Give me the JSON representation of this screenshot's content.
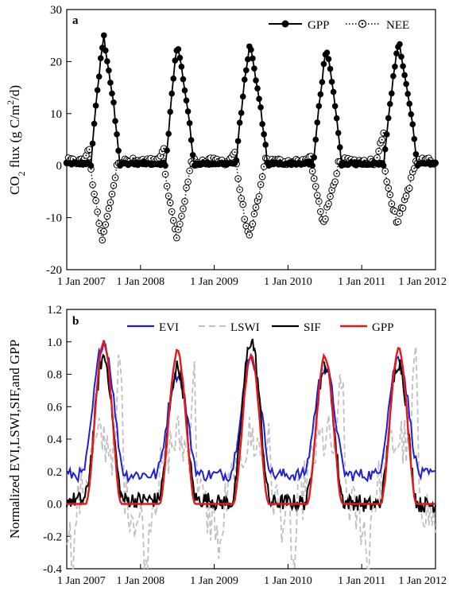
{
  "chart_data": [
    {
      "type": "line",
      "panel_label": "a",
      "title": "",
      "ylabel": "CO2 flux (g C/m2/d)",
      "ylabel_parts": {
        "pre": "CO",
        "sub": "2",
        "mid": " flux (g C/m",
        "sup": "2",
        "post": "/d)"
      },
      "xlabel": "",
      "xlim": [
        2007.0,
        2012.0
      ],
      "ylim": [
        -20,
        30
      ],
      "yticks": [
        -20,
        -10,
        0,
        10,
        20,
        30
      ],
      "ytick_labels": [
        "-20",
        "-10",
        "0",
        "10",
        "20",
        "30"
      ],
      "xticks": [
        2007,
        2008,
        2009,
        2010,
        2011,
        2012
      ],
      "xtick_labels": [
        "1 Jan 2007",
        "1 Jan 2008",
        "1 Jan 2009",
        "1 Jan 2010",
        "1 Jan 2011",
        "1 Jan 2012"
      ],
      "legend_position": "top-right",
      "grid": false,
      "series": [
        {
          "name": "GPP",
          "style": "solid-filled-circle",
          "color": "#000000",
          "seasons": [
            {
              "onset": 2007.33,
              "peak": 2007.5,
              "peak_value": 25.0,
              "offset": 2007.72
            },
            {
              "onset": 2008.35,
              "peak": 2008.5,
              "peak_value": 23.8,
              "offset": 2008.72
            },
            {
              "onset": 2009.3,
              "peak": 2009.48,
              "peak_value": 23.5,
              "offset": 2009.72
            },
            {
              "onset": 2010.35,
              "peak": 2010.52,
              "peak_value": 23.0,
              "offset": 2010.72
            },
            {
              "onset": 2011.3,
              "peak": 2011.5,
              "peak_value": 24.0,
              "offset": 2011.75
            }
          ]
        },
        {
          "name": "NEE",
          "style": "dotted-open-circle",
          "color": "#000000",
          "seasons": [
            {
              "dormant_peak": 2007.32,
              "dormant_value": 3.5,
              "min": 2007.48,
              "min_value": -14.5,
              "recover": 2007.68
            },
            {
              "dormant_peak": 2008.32,
              "dormant_value": 3.0,
              "min": 2008.49,
              "min_value": -14.0,
              "recover": 2008.68
            },
            {
              "dormant_peak": 2009.3,
              "dormant_value": 3.2,
              "min": 2009.47,
              "min_value": -14.3,
              "recover": 2009.68
            },
            {
              "dormant_peak": 2010.32,
              "dormant_value": 2.0,
              "min": 2010.48,
              "min_value": -11.0,
              "recover": 2010.68
            },
            {
              "dormant_peak": 2011.3,
              "dormant_value": 6.5,
              "min": 2011.48,
              "min_value": -11.0,
              "recover": 2011.72
            }
          ]
        }
      ]
    },
    {
      "type": "line",
      "panel_label": "b",
      "title": "",
      "ylabel": "Normalized EVI,LSWI,SIF,and GPP",
      "xlabel": "",
      "xlim": [
        2007.0,
        2012.0
      ],
      "ylim": [
        -0.4,
        1.2
      ],
      "yticks": [
        -0.4,
        -0.2,
        0.0,
        0.2,
        0.4,
        0.6,
        0.8,
        1.0,
        1.2
      ],
      "ytick_labels": [
        "-0.4",
        "-0.2",
        "0.0",
        "0.2",
        "0.4",
        "0.6",
        "0.8",
        "1.0",
        "1.2"
      ],
      "xticks": [
        2007,
        2008,
        2009,
        2010,
        2011,
        2012
      ],
      "xtick_labels": [
        "1 Jan 2007",
        "1 Jan 2008",
        "1 Jan 2009",
        "1 Jan 2010",
        "1 Jan 2011",
        "1 Jan 2012"
      ],
      "legend_position": "top",
      "grid": false,
      "series": [
        {
          "name": "EVI",
          "style": "solid",
          "color": "#1f1fd6",
          "baseline": 0.18,
          "peaks": [
            1.0,
            0.8,
            0.9,
            0.85,
            0.9
          ]
        },
        {
          "name": "LSWI",
          "style": "dashed",
          "color": "#c0c0c0",
          "peaks": [
            1.0,
            0.92,
            0.52,
            0.95,
            1.0
          ],
          "troughs": [
            -0.3,
            -0.3,
            -0.2,
            -0.25,
            -0.25
          ]
        },
        {
          "name": "SIF",
          "style": "solid",
          "color": "#000000",
          "peaks": [
            0.88,
            0.82,
            1.0,
            0.85,
            0.88
          ],
          "troughs": [
            -0.05,
            -0.05,
            -0.1,
            -0.1,
            -0.15
          ]
        },
        {
          "name": "GPP",
          "style": "solid",
          "color": "#e31a1c",
          "peaks": [
            1.0,
            0.94,
            0.92,
            0.91,
            0.96
          ]
        }
      ]
    }
  ]
}
